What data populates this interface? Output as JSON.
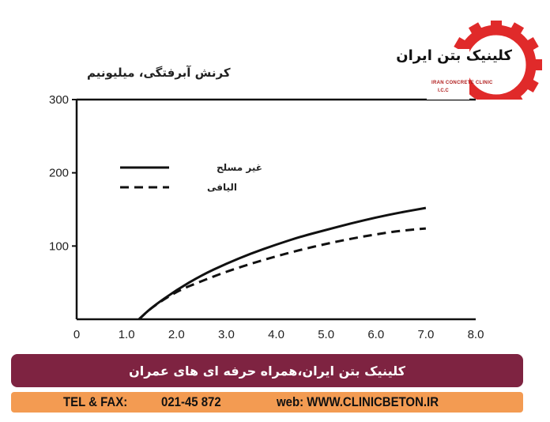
{
  "chart_data": {
    "type": "line",
    "ylabel": "کرنش آبرفتگی، میلیونیم",
    "xlabel": "",
    "xlim": [
      0,
      8
    ],
    "ylim": [
      0,
      300
    ],
    "x_ticks": [
      "0",
      "1.0",
      "2.0",
      "3.0",
      "4.0",
      "5.0",
      "6.0",
      "7.0",
      "8.0"
    ],
    "y_ticks": [
      "100",
      "200",
      "300"
    ],
    "legend_position": "top-left",
    "series": [
      {
        "name": "غیر مسلح",
        "style": "solid",
        "x": [
          1.25,
          1.5,
          2.0,
          2.5,
          3.0,
          3.5,
          4.0,
          4.5,
          5.0,
          5.5,
          6.0,
          6.5,
          7.0
        ],
        "values": [
          0,
          16,
          40,
          60,
          76,
          90,
          102,
          113,
          122,
          131,
          139,
          146,
          152
        ]
      },
      {
        "name": "الیافی",
        "style": "dashed",
        "x": [
          1.25,
          1.5,
          2.0,
          2.5,
          3.0,
          3.5,
          4.0,
          4.5,
          5.0,
          5.5,
          6.0,
          6.5,
          7.0
        ],
        "values": [
          0,
          16,
          38,
          52,
          65,
          76,
          86,
          95,
          103,
          110,
          116,
          121,
          124
        ]
      }
    ]
  },
  "logo": {
    "name_fa": "کلینیک بتن ایران",
    "name_en": "IRAN CONCRETE CLINIC",
    "short": "I.C.C",
    "accent": "#e02a2a"
  },
  "banner": {
    "text": "کلینیک بتن ایران،همراه حرفه ای های عمران",
    "color": "#7e2341"
  },
  "contact": {
    "tel_label": "TEL & FAX:",
    "tel_value": "021-45 872",
    "web_label": "web: WWW.CLINICBETON.IR",
    "color": "#f39b52"
  }
}
